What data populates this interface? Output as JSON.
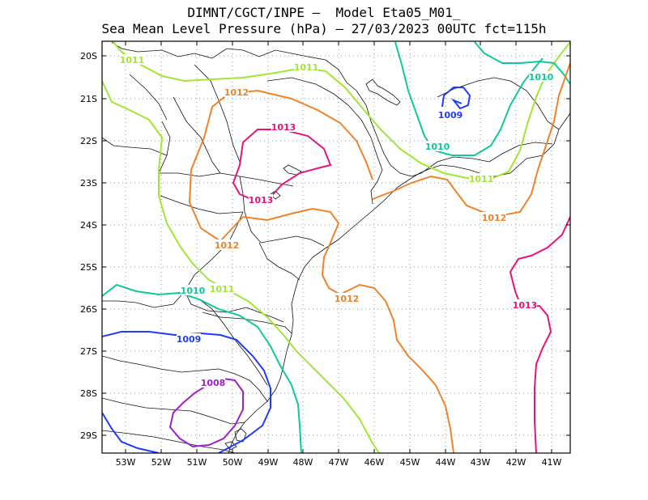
{
  "header": {
    "line1": "DIMNT/CGCT/INPE —  Model Eta05_M01_",
    "line2": "Sea Mean Level Pressure (hPa) — 27/03/2023 00UTC fct=115h"
  },
  "axes": {
    "lat_labels": [
      "20S",
      "21S",
      "22S",
      "23S",
      "24S",
      "25S",
      "26S",
      "27S",
      "28S",
      "29S"
    ],
    "lon_labels": [
      "53W",
      "52W",
      "51W",
      "50W",
      "49W",
      "48W",
      "47W",
      "46W",
      "45W",
      "44W",
      "43W",
      "42W",
      "41W"
    ]
  },
  "contour_colors": {
    "1008": "#a020c8",
    "1009": "#1e3cff",
    "1010": "#10c89a",
    "1011": "#a0e632",
    "1012": "#f08228",
    "1013": "#e6147c"
  },
  "contour_labels": [
    {
      "text": "1011",
      "level": "1011"
    },
    {
      "text": "1011",
      "level": "1011"
    },
    {
      "text": "1010",
      "level": "1010"
    },
    {
      "text": "1012",
      "level": "1012"
    },
    {
      "text": "1013",
      "level": "1013"
    },
    {
      "text": "1009",
      "level": "1009"
    },
    {
      "text": "1010",
      "level": "1010"
    },
    {
      "text": "1011",
      "level": "1011"
    },
    {
      "text": "1013",
      "level": "1013"
    },
    {
      "text": "1012",
      "level": "1012"
    },
    {
      "text": "1012",
      "level": "1012"
    },
    {
      "text": "1010",
      "level": "1010"
    },
    {
      "text": "1011",
      "level": "1011"
    },
    {
      "text": "1012",
      "level": "1012"
    },
    {
      "text": "1013",
      "level": "1013"
    },
    {
      "text": "1009",
      "level": "1009"
    },
    {
      "text": "1008",
      "level": "1008"
    }
  ]
}
